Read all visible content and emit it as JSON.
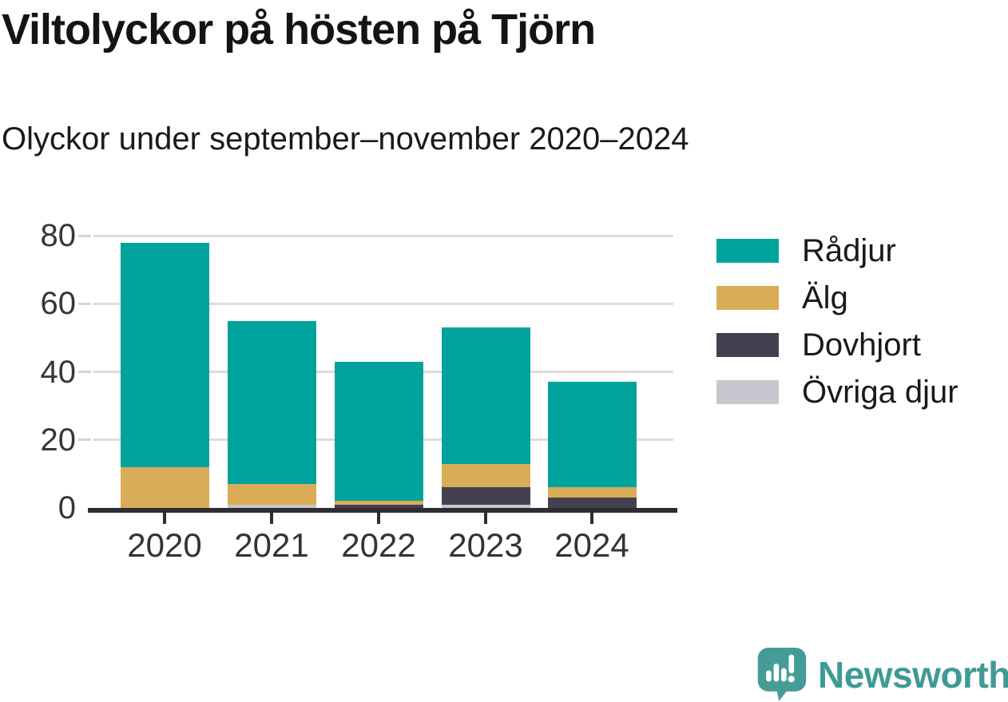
{
  "header": {
    "title": "Viltolyckor på hösten på Tjörn",
    "subtitle": "Olyckor under september–november 2020–2024"
  },
  "chart_data": {
    "type": "bar",
    "stacked": true,
    "title": "Viltolyckor på hösten på Tjörn",
    "subtitle": "Olyckor under september–november 2020–2024",
    "categories": [
      "2020",
      "2021",
      "2022",
      "2023",
      "2024"
    ],
    "series": [
      {
        "name": "Rådjur",
        "color": "#00a39b",
        "values": [
          66,
          48,
          41,
          40,
          31
        ]
      },
      {
        "name": "Älg",
        "color": "#d9ac57",
        "values": [
          12,
          6,
          1,
          7,
          3
        ]
      },
      {
        "name": "Dovhjort",
        "color": "#454050",
        "values": [
          0,
          0,
          1,
          5,
          3
        ]
      },
      {
        "name": "Övriga djur",
        "color": "#c8c6cf",
        "values": [
          0,
          1,
          0,
          1,
          0
        ]
      }
    ],
    "stacked_totals": [
      78,
      55,
      43,
      53,
      37
    ],
    "xlabel": "",
    "ylabel": "",
    "y_ticks": [
      0,
      20,
      40,
      60,
      80
    ],
    "ylim": [
      0,
      84
    ],
    "grid": "horizontal-light",
    "legend_position": "right"
  },
  "branding": {
    "logo_text": "Newsworthy"
  },
  "colors": {
    "axis_line": "#2e2d33",
    "gridline": "#dcdcdc",
    "tick_label": "#363636",
    "title_text": "#141414",
    "logo_teal": "#3f9a95"
  }
}
